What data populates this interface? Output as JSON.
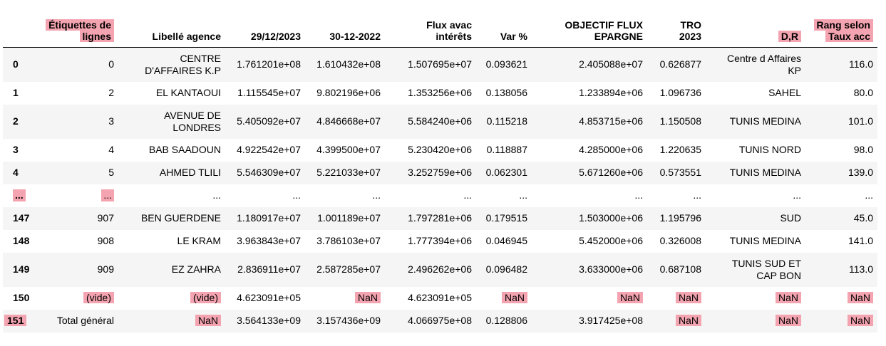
{
  "headers": {
    "index": "",
    "etiquettes": "Étiquettes de lignes",
    "etiquettes_l1": "Étiquettes de",
    "etiquettes_l2": "lignes",
    "libelle": "Libellé agence",
    "d2023": "29/12/2023",
    "d2022": "30-12-2022",
    "flux_l1": "Flux avac",
    "flux_l2": "intérêts",
    "var": "Var %",
    "obj_l1": "OBJECTIF FLUX",
    "obj_l2": "EPARGNE",
    "tro_l1": "TRO",
    "tro_l2": "2023",
    "dr": "D,R",
    "rang_l1": "Rang selon",
    "rang_l2": "Taux acc"
  },
  "rows": [
    {
      "idx": "0",
      "etiq": "0",
      "lib": "CENTRE D'AFFAIRES K.P",
      "lib_l1": "CENTRE",
      "lib_l2": "D'AFFAIRES K.P",
      "d2023": "1.761201e+08",
      "d2022": "1.610432e+08",
      "flux": "1.507695e+07",
      "var": "0.093621",
      "obj": "2.405088e+07",
      "tro": "0.626877",
      "dr_l1": "Centre d Affaires",
      "dr_l2": "KP",
      "rang": "116.0"
    },
    {
      "idx": "1",
      "etiq": "2",
      "lib": "EL KANTAOUI",
      "d2023": "1.115545e+07",
      "d2022": "9.802196e+06",
      "flux": "1.353256e+06",
      "var": "0.138056",
      "obj": "1.233894e+06",
      "tro": "1.096736",
      "dr": "SAHEL",
      "rang": "80.0"
    },
    {
      "idx": "2",
      "etiq": "3",
      "lib_l1": "AVENUE DE",
      "lib_l2": "LONDRES",
      "d2023": "5.405092e+07",
      "d2022": "4.846668e+07",
      "flux": "5.584240e+06",
      "var": "0.115218",
      "obj": "4.853715e+06",
      "tro": "1.150508",
      "dr": "TUNIS MEDINA",
      "rang": "101.0"
    },
    {
      "idx": "3",
      "etiq": "4",
      "lib": "BAB SAADOUN",
      "d2023": "4.922542e+07",
      "d2022": "4.399500e+07",
      "flux": "5.230420e+06",
      "var": "0.118887",
      "obj": "4.285000e+06",
      "tro": "1.220635",
      "dr": "TUNIS NORD",
      "rang": "98.0"
    },
    {
      "idx": "4",
      "etiq": "5",
      "lib": "AHMED TLILI",
      "d2023": "5.546309e+07",
      "d2022": "5.221033e+07",
      "flux": "3.252759e+06",
      "var": "0.062301",
      "obj": "5.671260e+06",
      "tro": "0.573551",
      "dr": "TUNIS MEDINA",
      "rang": "139.0"
    },
    {
      "idx": "...",
      "etiq": "...",
      "lib": "...",
      "d2023": "...",
      "d2022": "...",
      "flux": "...",
      "var": "...",
      "obj": "...",
      "tro": "...",
      "dr": "...",
      "rang": "..."
    },
    {
      "idx": "147",
      "etiq": "907",
      "lib": "BEN GUERDENE",
      "d2023": "1.180917e+07",
      "d2022": "1.001189e+07",
      "flux": "1.797281e+06",
      "var": "0.179515",
      "obj": "1.503000e+06",
      "tro": "1.195796",
      "dr": "SUD",
      "rang": "45.0"
    },
    {
      "idx": "148",
      "etiq": "908",
      "lib": "LE KRAM",
      "d2023": "3.963843e+07",
      "d2022": "3.786103e+07",
      "flux": "1.777394e+06",
      "var": "0.046945",
      "obj": "5.452000e+06",
      "tro": "0.326008",
      "dr": "TUNIS MEDINA",
      "rang": "141.0"
    },
    {
      "idx": "149",
      "etiq": "909",
      "lib": "EZ ZAHRA",
      "d2023": "2.836911e+07",
      "d2022": "2.587285e+07",
      "flux": "2.496262e+06",
      "var": "0.096482",
      "obj": "3.633000e+06",
      "tro": "0.687108",
      "dr_l1": "TUNIS SUD ET",
      "dr_l2": "CAP BON",
      "rang": "113.0"
    },
    {
      "idx": "150",
      "etiq": "(vide)",
      "lib": "(vide)",
      "d2023": "4.623091e+05",
      "d2022": "NaN",
      "flux": "4.623091e+05",
      "var": "NaN",
      "obj": "NaN",
      "tro": "NaN",
      "dr": "NaN",
      "rang": "NaN"
    },
    {
      "idx": "151",
      "etiq": "Total général",
      "lib": "NaN",
      "d2023": "3.564133e+09",
      "d2022": "3.157436e+09",
      "flux": "4.066975e+08",
      "var": "0.128806",
      "obj": "3.917425e+08",
      "tro": "NaN",
      "dr": "NaN",
      "rang": "NaN"
    }
  ]
}
